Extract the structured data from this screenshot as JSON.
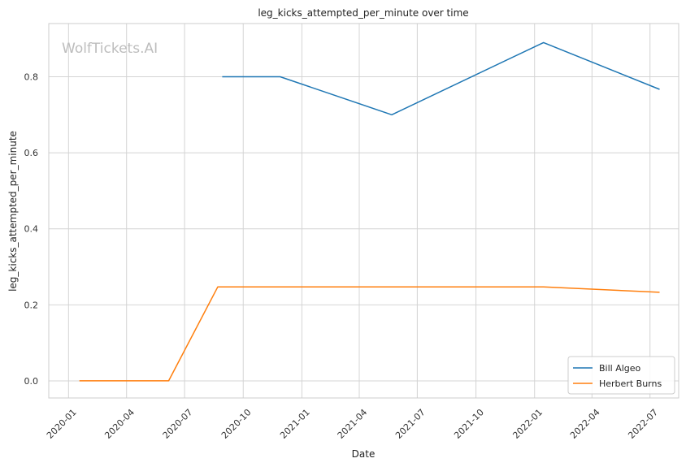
{
  "chart_data": {
    "type": "line",
    "title": "leg_kicks_attempted_per_minute over time",
    "xlabel": "Date",
    "ylabel": "leg_kicks_attempted_per_minute",
    "watermark": "WolfTickets.AI",
    "xlim": [
      "2019-12-01",
      "2022-08-15"
    ],
    "ylim": [
      -0.045,
      0.94
    ],
    "x_ticks": [
      "2020-01",
      "2020-04",
      "2020-07",
      "2020-10",
      "2021-01",
      "2021-04",
      "2021-07",
      "2021-10",
      "2022-01",
      "2022-04",
      "2022-07"
    ],
    "y_ticks": [
      0.0,
      0.2,
      0.4,
      0.6,
      0.8
    ],
    "y_tick_labels": [
      "0.0",
      "0.2",
      "0.4",
      "0.6",
      "0.8"
    ],
    "grid": true,
    "legend_position": "lower-right",
    "series": [
      {
        "name": "Bill Algeo",
        "color": "#1f77b4",
        "x": [
          "2020-08-29",
          "2020-11-28",
          "2021-05-22",
          "2022-01-15",
          "2022-07-16"
        ],
        "y": [
          0.8,
          0.8,
          0.7,
          0.89,
          0.767
        ]
      },
      {
        "name": "Herbert Burns",
        "color": "#ff7f0e",
        "x": [
          "2020-01-18",
          "2020-06-06",
          "2020-08-22",
          "2022-01-15",
          "2022-07-16"
        ],
        "y": [
          0.0,
          0.0,
          0.247,
          0.247,
          0.233
        ]
      }
    ]
  }
}
